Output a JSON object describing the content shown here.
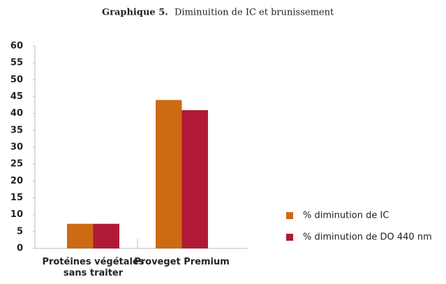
{
  "chart_data": {
    "type": "bar",
    "title_prefix": "Graphique 5.",
    "title": "Diminuition de IC et brunissement",
    "categories": [
      "Protéines végétales sans traiter",
      "Proveget Premium"
    ],
    "series": [
      {
        "name": "% diminution de IC",
        "color": "#cc6a14",
        "values": [
          7.3,
          44
        ]
      },
      {
        "name": "% diminution de DO 440 nm",
        "color": "#b01a35",
        "values": [
          7.3,
          41
        ]
      }
    ],
    "ylim": [
      0,
      60
    ],
    "yticks": [
      0,
      5,
      10,
      15,
      20,
      25,
      30,
      35,
      40,
      45,
      50,
      55,
      60
    ],
    "legend": "right"
  }
}
